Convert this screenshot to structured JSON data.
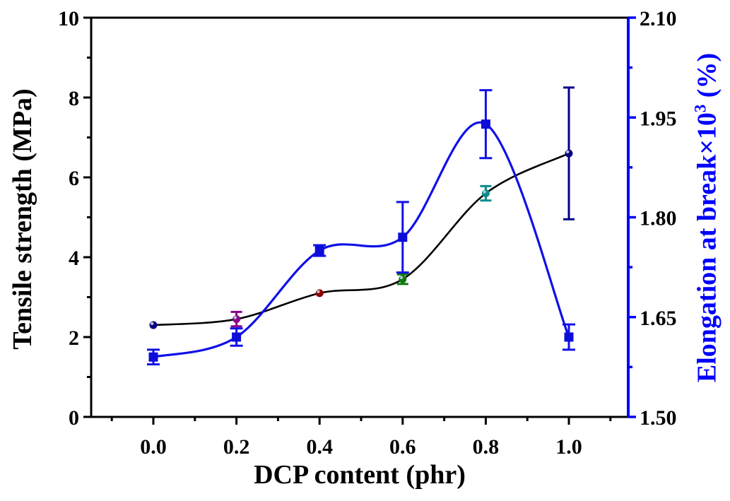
{
  "figure": {
    "left_axis": {
      "title": "Tensile strength (MPa)",
      "tick_labels": [
        "0",
        "2",
        "4",
        "6",
        "8",
        "10"
      ],
      "tick_values": [
        0,
        2,
        4,
        6,
        8,
        10
      ],
      "minor_tick_values": [
        1,
        3,
        5,
        7,
        9
      ],
      "range": [
        0,
        10
      ],
      "color": "#000000"
    },
    "right_axis": {
      "title_base": "Elongation at break×10",
      "title_sup": "3",
      "title_end": " (%)",
      "tick_labels": [
        "1.50",
        "1.65",
        "1.80",
        "1.95",
        "2.10"
      ],
      "tick_values": [
        1.5,
        1.65,
        1.8,
        1.95,
        2.1
      ],
      "minor_tick_values": [
        1.575,
        1.725,
        1.875,
        2.025
      ],
      "range": [
        1.5,
        2.1
      ],
      "color": "#0000ff"
    },
    "x_axis": {
      "title": "DCP content (phr)",
      "tick_labels": [
        "0.0",
        "0.2",
        "0.4",
        "0.6",
        "0.8",
        "1.0"
      ],
      "tick_values": [
        0.0,
        0.2,
        0.4,
        0.6,
        0.8,
        1.0
      ],
      "minor_tick_values": [
        -0.1,
        0.1,
        0.3,
        0.5,
        0.7,
        0.9,
        1.1
      ],
      "color": "#000000"
    }
  },
  "chart_data": {
    "type": "line",
    "xlabel": "DCP content (phr)",
    "x": [
      0.0,
      0.2,
      0.4,
      0.6,
      0.8,
      1.0
    ],
    "left_ylabel": "Tensile strength (MPa)",
    "right_ylabel": "Elongation at break×10³ (%)",
    "left_ylim": [
      0,
      10
    ],
    "right_ylim": [
      1.5,
      2.1
    ],
    "grid": false,
    "legend": "none",
    "series": [
      {
        "name": "Tensile strength",
        "axis": "left",
        "values": [
          2.3,
          2.45,
          3.1,
          3.45,
          5.6,
          6.6
        ],
        "errors": [
          0,
          0.18,
          0,
          0.12,
          0.18,
          1.65
        ],
        "line_color": "#000000",
        "line_width": 2.6,
        "marker": "circle",
        "marker_size": 11,
        "marker_colors": [
          "#000080",
          "#8b008b",
          "#8b0000",
          "#0a7a0a",
          "#0d8b8b",
          "#000080"
        ],
        "error_bar_colors": [
          "#000080",
          "#8b008b",
          "#8b0000",
          "#0a7a0a",
          "#0d8b8b",
          "#00008b"
        ]
      },
      {
        "name": "Elongation at break",
        "axis": "right",
        "values": [
          1.59,
          1.62,
          1.75,
          1.77,
          1.94,
          1.62
        ],
        "errors": [
          0.011,
          0.013,
          0.008,
          0.053,
          0.051,
          0.019
        ],
        "line_color": "#1010e8",
        "line_width": 3.2,
        "marker": "square",
        "marker_size": 13,
        "marker_colors": [
          "#0d0dd8",
          "#0d0dd8",
          "#0d0dd8",
          "#0d0dd8",
          "#0d0dd8",
          "#0d0dd8"
        ],
        "error_bar_colors": [
          "#1010e8",
          "#1010e8",
          "#1010e8",
          "#1010e8",
          "#1010e8",
          "#1010e8"
        ]
      }
    ]
  }
}
